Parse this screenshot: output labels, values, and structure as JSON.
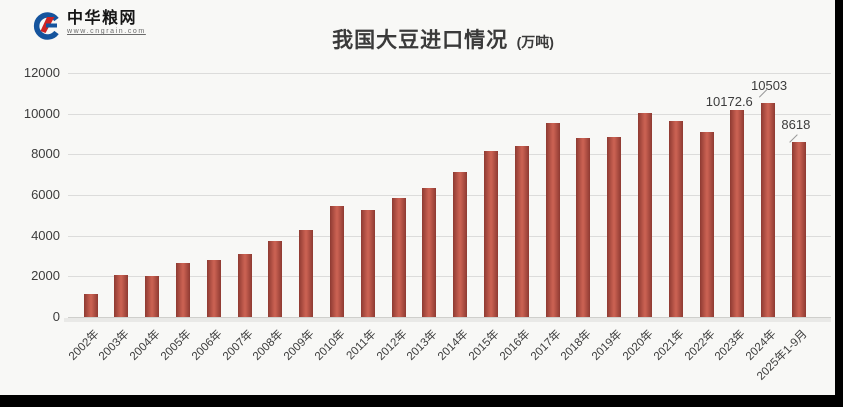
{
  "logo": {
    "name": "中华粮网",
    "url": "www.cngrain.com"
  },
  "chart_data": {
    "type": "bar",
    "title": "我国大豆进口情况",
    "unit_label": "(万吨)",
    "unit": "万吨",
    "categories": [
      "2002年",
      "2003年",
      "2004年",
      "2005年",
      "2006年",
      "2007年",
      "2008年",
      "2009年",
      "2010年",
      "2011年",
      "2012年",
      "2013年",
      "2014年",
      "2015年",
      "2016年",
      "2017年",
      "2018年",
      "2019年",
      "2020年",
      "2021年",
      "2022年",
      "2023年",
      "2024年",
      "2025年1-9月"
    ],
    "values": [
      1132,
      2074,
      2023,
      2659,
      2824,
      3082,
      3744,
      4255,
      5480,
      5264,
      5838,
      6338,
      7140,
      8169,
      8391,
      9554,
      8803,
      8851,
      10033,
      9652,
      9108,
      10172.6,
      10503,
      8618
    ],
    "point_labels": [
      {
        "index": 21,
        "text": "10172.6"
      },
      {
        "index": 22,
        "text": "10503"
      },
      {
        "index": 23,
        "text": "8618"
      }
    ],
    "yticks": [
      0,
      2000,
      4000,
      6000,
      8000,
      10000,
      12000
    ],
    "ylim": [
      0,
      12000
    ],
    "grid": true,
    "legend_position": "none",
    "bar_color_center": "#c86051",
    "bar_color_edge": "#8e3a32",
    "background": "#f8f8f6",
    "gridline_color": "#dcdcdb"
  }
}
